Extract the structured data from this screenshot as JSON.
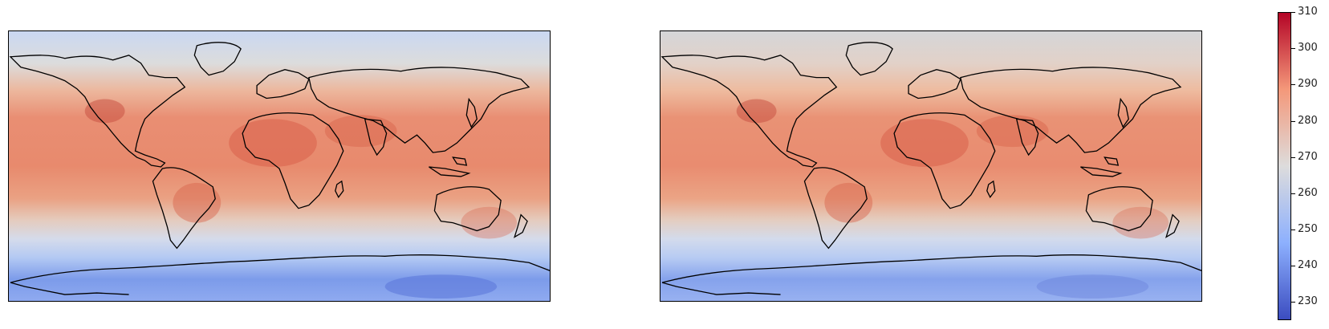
{
  "maps": [
    {
      "id": "left",
      "name": "temperature-map-left"
    },
    {
      "id": "right",
      "name": "temperature-map-right"
    }
  ],
  "colorbar": {
    "colormap": "coolwarm",
    "vmin": 225,
    "vmax": 310,
    "ticks": [
      "310",
      "300",
      "290",
      "280",
      "270",
      "260",
      "250",
      "240",
      "230"
    ],
    "tick_values": [
      310,
      300,
      290,
      280,
      270,
      260,
      250,
      240,
      230
    ]
  },
  "colors": {
    "cold": "#3b4cc0",
    "cool": "#8db0fe",
    "neutral": "#dddcdc",
    "warm": "#f4987a",
    "hot": "#b40426",
    "coastline": "#000000"
  }
}
